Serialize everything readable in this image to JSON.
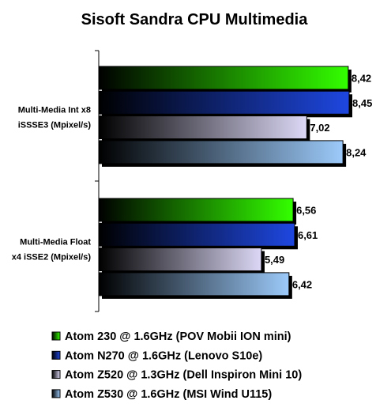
{
  "chart_data": {
    "type": "bar",
    "orientation": "horizontal",
    "title": "Sisoft Sandra CPU Multimedia",
    "categories": [
      [
        "Multi-Media Int x8",
        "iSSSE3 (Mpixel/s)"
      ],
      [
        "Multi-Media Float",
        "x4 iSSE2 (Mpixel/s)"
      ]
    ],
    "series": [
      {
        "name": "Atom 230 @ 1.6GHz (POV Mobii ION mini)",
        "values": [
          8.42,
          6.56
        ],
        "labels": [
          "8,42",
          "6,56"
        ],
        "color": "#33ff00",
        "color_dark": "#000000"
      },
      {
        "name": "Atom N270 @ 1.6GHz (Lenovo S10e)",
        "values": [
          8.45,
          6.61
        ],
        "labels": [
          "8,45",
          "6,61"
        ],
        "color": "#1e47e0",
        "color_dark": "#000000"
      },
      {
        "name": "Atom Z520 @ 1.3GHz (Dell Inspiron Mini 10)",
        "values": [
          7.02,
          5.49
        ],
        "labels": [
          "7,02",
          "5,49"
        ],
        "color": "#dcd8f6",
        "color_dark": "#000000"
      },
      {
        "name": "Atom Z530 @ 1.6GHz (MSI Wind U115)",
        "values": [
          8.24,
          6.42
        ],
        "labels": [
          "8,24",
          "6,42"
        ],
        "color": "#9ccafa",
        "color_dark": "#000000"
      }
    ],
    "xlim": [
      0,
      8.45
    ],
    "grid": false,
    "legend": "bottom"
  }
}
